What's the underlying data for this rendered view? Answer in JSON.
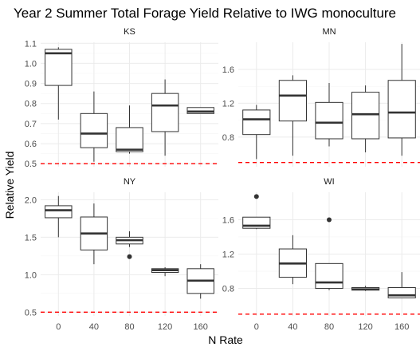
{
  "chart_data": {
    "type": "box",
    "title": "Year 2 Summer Total Forage Yield Relative to IWG monoculture",
    "xlabel": "N Rate",
    "ylabel": "Relative Yield",
    "categories": [
      "0",
      "40",
      "80",
      "120",
      "160"
    ],
    "reference_line": {
      "y": 0.5,
      "color": "#ff0000",
      "style": "dashed"
    },
    "colors": {
      "box_stroke": "#333333",
      "grid_major": "#ebebeb",
      "grid_minor": "#f5f5f5",
      "background": "#ffffff"
    },
    "panels": [
      {
        "name": "KS",
        "ylim": [
          0.485,
          1.105
        ],
        "yticks": [
          0.5,
          0.6,
          0.7,
          0.8,
          0.9,
          1.0,
          1.1
        ],
        "ytick_labels": [
          "0.5",
          "0.6",
          "0.7",
          "0.8",
          "0.9",
          "1.0",
          "1.1"
        ],
        "boxes": [
          {
            "x": "0",
            "whisker_low": 0.72,
            "q1": 0.89,
            "median": 1.05,
            "q3": 1.07,
            "whisker_high": 1.08,
            "outliers": []
          },
          {
            "x": "40",
            "whisker_low": 0.51,
            "q1": 0.58,
            "median": 0.65,
            "q3": 0.75,
            "whisker_high": 0.86,
            "outliers": []
          },
          {
            "x": "80",
            "whisker_low": 0.55,
            "q1": 0.56,
            "median": 0.57,
            "q3": 0.68,
            "whisker_high": 0.79,
            "outliers": []
          },
          {
            "x": "120",
            "whisker_low": 0.54,
            "q1": 0.66,
            "median": 0.79,
            "q3": 0.85,
            "whisker_high": 0.92,
            "outliers": []
          },
          {
            "x": "160",
            "whisker_low": 0.75,
            "q1": 0.75,
            "median": 0.76,
            "q3": 0.78,
            "whisker_high": 0.78,
            "outliers": []
          }
        ]
      },
      {
        "name": "MN",
        "ylim": [
          0.45,
          1.92
        ],
        "yticks": [
          0.8,
          1.2,
          1.6
        ],
        "ytick_labels": [
          "0.8",
          "1.2",
          "1.6"
        ],
        "boxes": [
          {
            "x": "0",
            "whisker_low": 0.54,
            "q1": 0.83,
            "median": 1.01,
            "q3": 1.12,
            "whisker_high": 1.18,
            "outliers": []
          },
          {
            "x": "40",
            "whisker_low": 0.58,
            "q1": 0.99,
            "median": 1.29,
            "q3": 1.47,
            "whisker_high": 1.53,
            "outliers": []
          },
          {
            "x": "80",
            "whisker_low": 0.69,
            "q1": 0.78,
            "median": 0.97,
            "q3": 1.21,
            "whisker_high": 1.44,
            "outliers": []
          },
          {
            "x": "120",
            "whisker_low": 0.62,
            "q1": 0.78,
            "median": 1.07,
            "q3": 1.33,
            "whisker_high": 1.41,
            "outliers": []
          },
          {
            "x": "160",
            "whisker_low": 0.58,
            "q1": 0.79,
            "median": 1.09,
            "q3": 1.47,
            "whisker_high": 1.9,
            "outliers": []
          }
        ]
      },
      {
        "name": "NY",
        "ylim": [
          0.45,
          2.1
        ],
        "yticks": [
          0.5,
          1.0,
          1.5,
          2.0
        ],
        "ytick_labels": [
          "0.5",
          "1.0",
          "1.5",
          "2.0"
        ],
        "boxes": [
          {
            "x": "0",
            "whisker_low": 1.5,
            "q1": 1.76,
            "median": 1.86,
            "q3": 1.92,
            "whisker_high": 2.05,
            "outliers": []
          },
          {
            "x": "40",
            "whisker_low": 1.14,
            "q1": 1.33,
            "median": 1.55,
            "q3": 1.77,
            "whisker_high": 1.95,
            "outliers": []
          },
          {
            "x": "80",
            "whisker_low": 1.37,
            "q1": 1.41,
            "median": 1.46,
            "q3": 1.5,
            "whisker_high": 1.58,
            "outliers": [
              1.24
            ]
          },
          {
            "x": "120",
            "whisker_low": 0.98,
            "q1": 1.03,
            "median": 1.06,
            "q3": 1.08,
            "whisker_high": 1.1,
            "outliers": []
          },
          {
            "x": "160",
            "whisker_low": 0.68,
            "q1": 0.75,
            "median": 0.92,
            "q3": 1.08,
            "whisker_high": 1.14,
            "outliers": []
          }
        ]
      },
      {
        "name": "WI",
        "ylim": [
          0.48,
          1.92
        ],
        "yticks": [
          0.8,
          1.2,
          1.6
        ],
        "ytick_labels": [
          "0.8",
          "1.2",
          "1.6"
        ],
        "boxes": [
          {
            "x": "0",
            "whisker_low": 1.49,
            "q1": 1.5,
            "median": 1.53,
            "q3": 1.63,
            "whisker_high": 1.63,
            "outliers": [
              1.87
            ]
          },
          {
            "x": "40",
            "whisker_low": 0.85,
            "q1": 0.93,
            "median": 1.09,
            "q3": 1.26,
            "whisker_high": 1.42,
            "outliers": []
          },
          {
            "x": "80",
            "whisker_low": 0.78,
            "q1": 0.8,
            "median": 0.87,
            "q3": 1.09,
            "whisker_high": 1.09,
            "outliers": [
              1.6
            ]
          },
          {
            "x": "120",
            "whisker_low": 0.77,
            "q1": 0.78,
            "median": 0.79,
            "q3": 0.81,
            "whisker_high": 0.83,
            "outliers": []
          },
          {
            "x": "160",
            "whisker_low": 0.69,
            "q1": 0.69,
            "median": 0.72,
            "q3": 0.81,
            "whisker_high": 0.99,
            "outliers": []
          }
        ]
      }
    ]
  }
}
